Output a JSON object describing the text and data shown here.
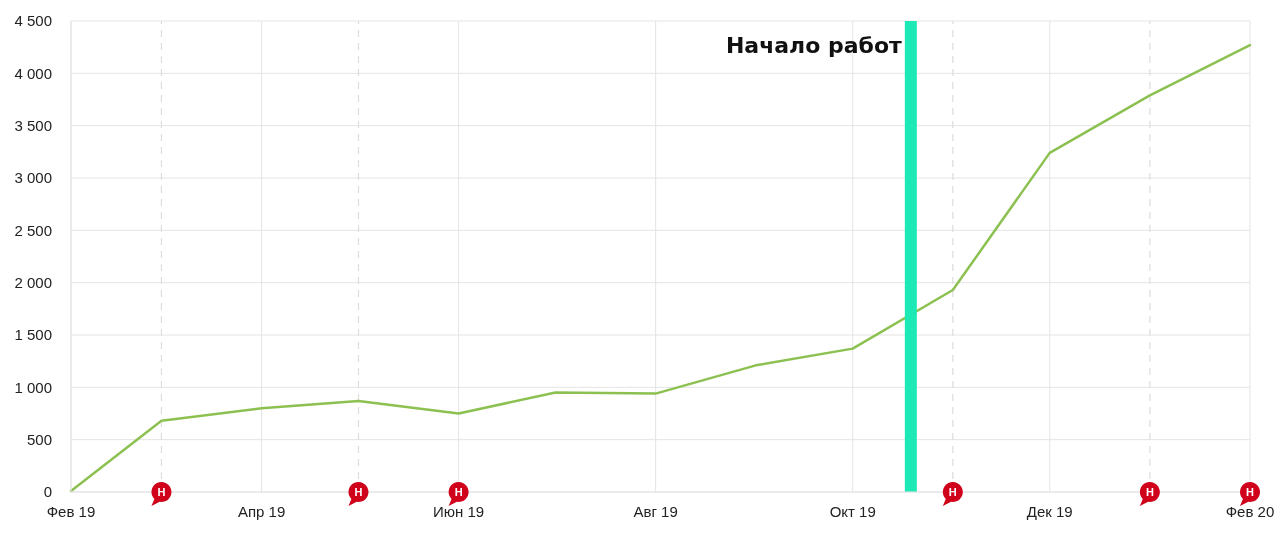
{
  "chart_data": {
    "type": "line",
    "x": [
      "2019-02",
      "2019-03",
      "2019-04",
      "2019-05",
      "2019-06",
      "2019-07",
      "2019-08",
      "2019-09",
      "2019-10",
      "2019-11",
      "2019-12",
      "2020-01",
      "2020-02"
    ],
    "series": [
      {
        "color": "#8cc152",
        "values": [
          10,
          680,
          800,
          870,
          750,
          950,
          940,
          1210,
          1370,
          1930,
          3240,
          3790,
          4270
        ]
      },
      {
        "type": "scatter",
        "x": [
          "2019-03",
          "2019-05",
          "2019-06",
          "2019-11",
          "2020-01",
          "2020-02"
        ],
        "values": [
          0,
          0,
          0,
          0,
          0,
          0
        ],
        "color": "#d0021b",
        "marker": "circle",
        "value_labels": [
          "Н",
          "Н",
          "Н",
          "Н",
          "Н",
          "Н"
        ]
      }
    ],
    "xlim": [
      "2019-02",
      "2020-02"
    ],
    "xticks": [
      {
        "value": "2019-02",
        "label": "Фев 19"
      },
      {
        "value": "2019-04",
        "label": "Апр 19"
      },
      {
        "value": "2019-06",
        "label": "Июн 19"
      },
      {
        "value": "2019-08",
        "label": "Авг 19"
      },
      {
        "value": "2019-10",
        "label": "Окт 19"
      },
      {
        "value": "2019-12",
        "label": "Дек 19"
      },
      {
        "value": "2020-02",
        "label": "Фев 20"
      }
    ],
    "ylim": [
      0,
      4500
    ],
    "yticks": [
      0,
      500,
      {
        "value": 1000,
        "label": "1 000"
      },
      {
        "value": 1500,
        "label": "1 500"
      },
      {
        "value": 2000,
        "label": "2 000"
      },
      {
        "value": 2500,
        "label": "2 500"
      },
      {
        "value": 3000,
        "label": "3 000"
      },
      {
        "value": 3500,
        "label": "3 500"
      },
      {
        "value": 4000,
        "label": "4 000"
      },
      {
        "value": 4500,
        "label": "4 500"
      }
    ],
    "grid": true,
    "ref_lines": [
      {
        "axis": "x",
        "value": "2019-10-19",
        "label": "Начало работ",
        "color": "#1de9b6",
        "line_style": "solid"
      },
      {
        "axis": "x",
        "value": "2019-03",
        "color": "#dddddd",
        "line_style": "dashed"
      },
      {
        "axis": "x",
        "value": "2019-05",
        "color": "#dddddd",
        "line_style": "dashed"
      },
      {
        "axis": "x",
        "value": "2019-11",
        "color": "#dddddd",
        "line_style": "dashed"
      },
      {
        "axis": "x",
        "value": "2020-01",
        "color": "#dddddd",
        "line_style": "dashed"
      }
    ]
  }
}
